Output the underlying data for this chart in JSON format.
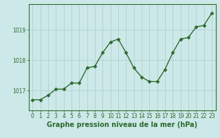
{
  "x": [
    0,
    1,
    2,
    3,
    4,
    5,
    6,
    7,
    8,
    9,
    10,
    11,
    12,
    13,
    14,
    15,
    16,
    17,
    18,
    19,
    20,
    21,
    22,
    23
  ],
  "y": [
    1016.7,
    1016.7,
    1016.85,
    1017.05,
    1017.05,
    1017.25,
    1017.25,
    1017.75,
    1017.8,
    1018.25,
    1018.6,
    1018.7,
    1018.25,
    1017.75,
    1017.45,
    1017.3,
    1017.3,
    1017.7,
    1018.25,
    1018.7,
    1018.75,
    1019.1,
    1019.15,
    1019.55
  ],
  "line_color": "#2d6a2d",
  "marker": "D",
  "marker_size": 2.5,
  "linewidth": 1.0,
  "bg_color": "#cce8e8",
  "grid_color": "#aacccc",
  "axis_color": "#2d6a2d",
  "xlabel": "Graphe pression niveau de la mer (hPa)",
  "xlabel_fontsize": 7,
  "xlabel_color": "#2d6a2d",
  "tick_label_color": "#2d6a2d",
  "tick_fontsize": 5.5,
  "yticks": [
    1017,
    1018,
    1019
  ],
  "ylim": [
    1016.35,
    1019.85
  ],
  "xlim": [
    -0.5,
    23.5
  ],
  "xtick_labels": [
    "0",
    "1",
    "2",
    "3",
    "4",
    "5",
    "6",
    "7",
    "8",
    "9",
    "10",
    "11",
    "12",
    "13",
    "14",
    "15",
    "16",
    "17",
    "18",
    "19",
    "20",
    "21",
    "22",
    "23"
  ]
}
